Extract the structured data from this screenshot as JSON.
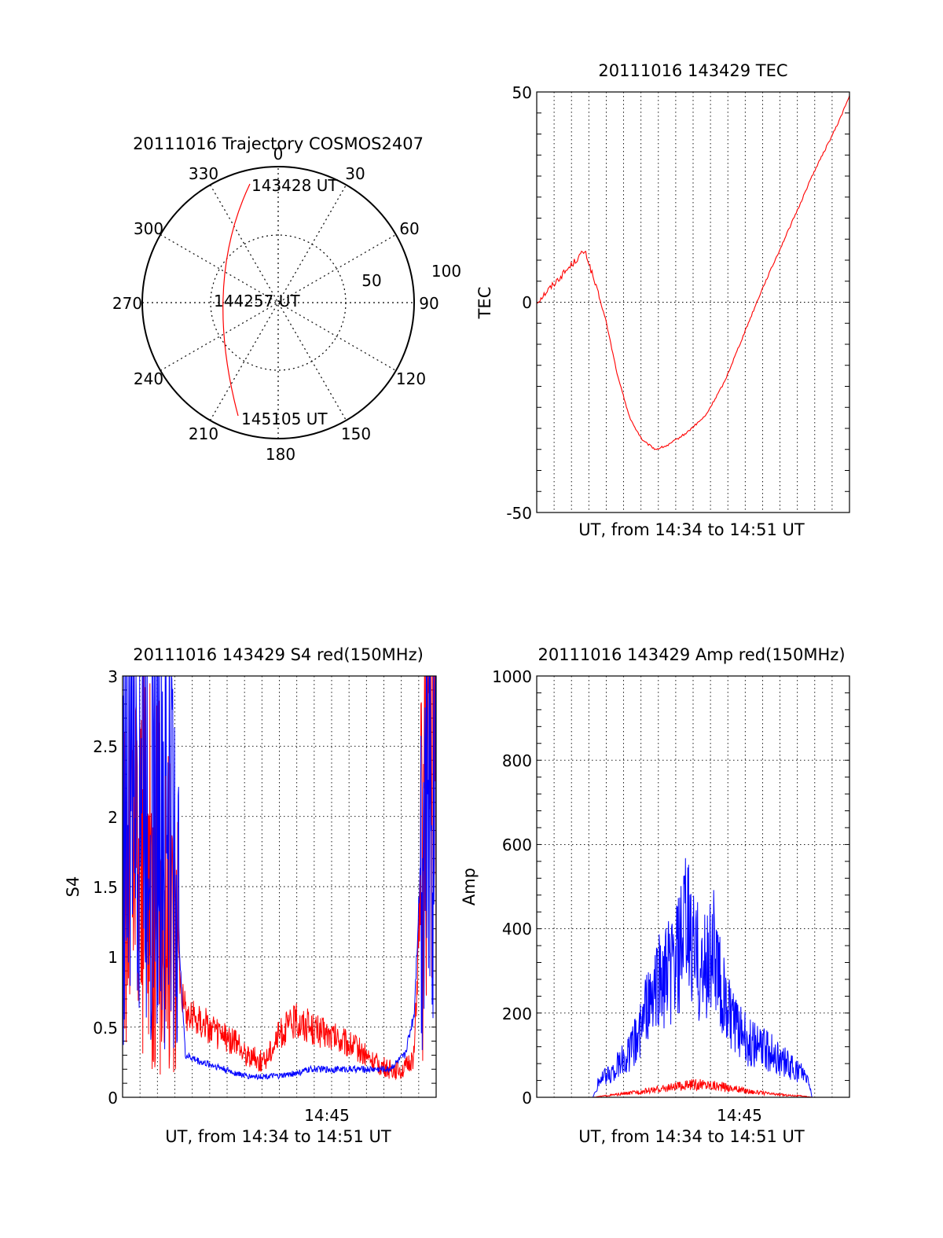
{
  "colors": {
    "red": "#ff0000",
    "blue": "#0000ff",
    "axis": "#000000",
    "grid": "#000000"
  },
  "polar": {
    "title": "20111016 Trajectory COSMOS2407",
    "azimuth_labels": [
      "0",
      "30",
      "60",
      "90",
      "120",
      "150",
      "180",
      "210",
      "240",
      "270",
      "300",
      "330"
    ],
    "radius_labels": [
      "50",
      "100"
    ],
    "start_label": "143428 UT",
    "mid_label": "144257 UT",
    "end_label": "145105 UT"
  },
  "chart_data": [
    {
      "type": "line",
      "name": "tec",
      "title": "20111016 143429 TEC",
      "xlabel": "UT, from 14:34 to 14:51 UT",
      "ylabel": "TEC",
      "ylim": [
        -50,
        50
      ],
      "yticks": [
        "50",
        "0",
        "-50"
      ],
      "grid": true,
      "series": [
        {
          "color": "#ff0000",
          "x": [
            0,
            0.05,
            0.1,
            0.15,
            0.16,
            0.18,
            0.22,
            0.26,
            0.3,
            0.34,
            0.38,
            0.42,
            0.48,
            0.54,
            0.6,
            0.66,
            0.72,
            0.78,
            0.84,
            0.88,
            0.92,
            0.96,
            1.0
          ],
          "y": [
            0,
            4,
            8,
            12,
            11,
            6,
            -4,
            -18,
            -28,
            -33,
            -35,
            -34,
            -31,
            -27,
            -19,
            -8,
            3,
            13,
            23,
            30,
            36,
            42,
            49
          ]
        }
      ]
    },
    {
      "type": "line",
      "name": "s4",
      "title": "20111016 143429 S4 red(150MHz)",
      "xlabel": "UT, from 14:34 to 14:51 UT",
      "ylabel": "S4",
      "ylim": [
        0,
        3
      ],
      "yticks": [
        "3",
        "2.5",
        "2",
        "1.5",
        "1",
        "0.5",
        "0"
      ],
      "xtick_label": "14:45",
      "grid": true,
      "series": [
        {
          "color": "#ff0000",
          "x": [
            0,
            0.04,
            0.08,
            0.12,
            0.16,
            0.2,
            0.25,
            0.3,
            0.35,
            0.4,
            0.45,
            0.5,
            0.55,
            0.6,
            0.65,
            0.7,
            0.75,
            0.8,
            0.85,
            0.9,
            0.93,
            0.96,
            1.0
          ],
          "y": [
            1.6,
            1.9,
            1.7,
            1.5,
            1.3,
            0.6,
            0.55,
            0.45,
            0.4,
            0.3,
            0.25,
            0.45,
            0.55,
            0.5,
            0.45,
            0.4,
            0.35,
            0.25,
            0.2,
            0.2,
            0.3,
            2.0,
            2.6
          ]
        },
        {
          "color": "#0000ff",
          "x": [
            0,
            0.04,
            0.08,
            0.12,
            0.16,
            0.2,
            0.25,
            0.3,
            0.35,
            0.4,
            0.45,
            0.5,
            0.55,
            0.6,
            0.65,
            0.7,
            0.75,
            0.8,
            0.85,
            0.9,
            0.93,
            0.96,
            1.0
          ],
          "y": [
            2.3,
            2.6,
            2.5,
            2.3,
            2.0,
            0.3,
            0.25,
            0.22,
            0.18,
            0.15,
            0.15,
            0.15,
            0.17,
            0.2,
            0.2,
            0.2,
            0.2,
            0.2,
            0.2,
            0.3,
            0.6,
            2.2,
            2.8
          ]
        }
      ]
    },
    {
      "type": "line",
      "name": "amp",
      "title": "20111016 143429 Amp red(150MHz)",
      "xlabel": "UT, from 14:34 to 14:51 UT",
      "ylabel": "Amp",
      "ylim": [
        0,
        1000
      ],
      "yticks": [
        "1000",
        "800",
        "600",
        "400",
        "200",
        "0"
      ],
      "xtick_label": "14:45",
      "grid": true,
      "series": [
        {
          "color": "#ff0000",
          "x": [
            0,
            0.18,
            0.2,
            0.25,
            0.3,
            0.35,
            0.4,
            0.45,
            0.5,
            0.55,
            0.6,
            0.65,
            0.7,
            0.75,
            0.8,
            0.85,
            0.88,
            1.0
          ],
          "y": [
            0,
            0,
            2,
            6,
            10,
            15,
            20,
            25,
            30,
            30,
            25,
            18,
            12,
            8,
            5,
            3,
            0,
            0
          ]
        },
        {
          "color": "#0000ff",
          "x": [
            0,
            0.18,
            0.2,
            0.24,
            0.3,
            0.34,
            0.38,
            0.42,
            0.45,
            0.48,
            0.5,
            0.53,
            0.56,
            0.6,
            0.64,
            0.68,
            0.72,
            0.76,
            0.8,
            0.84,
            0.87,
            0.88,
            0.9,
            1.0
          ],
          "y": [
            0,
            0,
            40,
            60,
            110,
            180,
            260,
            300,
            330,
            420,
            360,
            300,
            360,
            230,
            160,
            130,
            120,
            100,
            80,
            60,
            40,
            0,
            0,
            0
          ]
        }
      ]
    }
  ]
}
